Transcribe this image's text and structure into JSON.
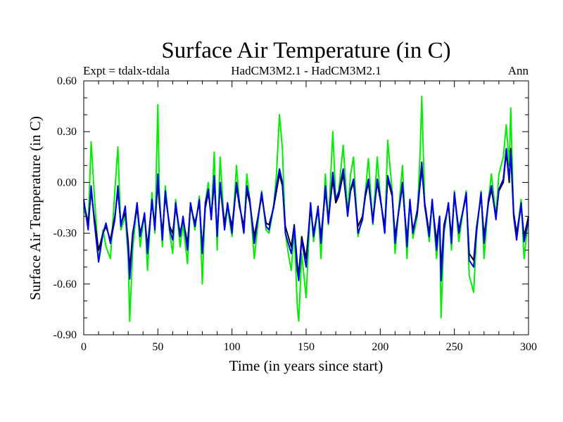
{
  "chart_data": {
    "type": "line",
    "title": "Surface Air Temperature (in C)",
    "subtitle_left": "Expt = tdalx-tdala",
    "subtitle_center": "HadCM3M2.1 - HadCM3M2.1",
    "subtitle_right": "Ann",
    "xlabel": "Time (in years since start)",
    "ylabel": "Surface Air Temperature (in C)",
    "xlim": [
      0,
      300
    ],
    "ylim": [
      -0.9,
      0.6
    ],
    "xticks": [
      0,
      50,
      100,
      150,
      200,
      250,
      300
    ],
    "xtick_labels": [
      "0",
      "50",
      "100",
      "150",
      "200",
      "250",
      "300"
    ],
    "yticks": [
      -0.9,
      -0.6,
      -0.3,
      0.0,
      0.3,
      0.6
    ],
    "ytick_labels": [
      "-0.90",
      "-0.60",
      "-0.30",
      "0.00",
      "0.30",
      "0.60"
    ],
    "grid": false,
    "series": [
      {
        "name": "green",
        "color": "#00ee00",
        "x": [
          0,
          3,
          5,
          7,
          10,
          13,
          15,
          18,
          21,
          23,
          25,
          28,
          30,
          31,
          33,
          36,
          38,
          41,
          43,
          46,
          48,
          50,
          51,
          53,
          55,
          58,
          60,
          62,
          65,
          67,
          70,
          72,
          75,
          78,
          80,
          82,
          84,
          86,
          88,
          90,
          92,
          95,
          97,
          100,
          103,
          105,
          108,
          110,
          112,
          115,
          118,
          120,
          123,
          125,
          128,
          130,
          132,
          134,
          136,
          138,
          140,
          142,
          144,
          145,
          147,
          150,
          153,
          155,
          158,
          160,
          163,
          165,
          168,
          170,
          172,
          175,
          178,
          180,
          182,
          185,
          188,
          190,
          192,
          195,
          198,
          200,
          203,
          205,
          208,
          210,
          212,
          215,
          218,
          220,
          222,
          225,
          227,
          228,
          230,
          233,
          235,
          238,
          240,
          241,
          243,
          246,
          248,
          250,
          253,
          255,
          258,
          260,
          263,
          265,
          268,
          270,
          273,
          275,
          278,
          280,
          283,
          285,
          287,
          288,
          290,
          292,
          295,
          297,
          300
        ],
        "values": [
          -0.15,
          -0.25,
          0.24,
          -0.05,
          -0.46,
          -0.28,
          -0.38,
          -0.45,
          -0.05,
          0.21,
          -0.28,
          -0.2,
          -0.45,
          -0.82,
          -0.4,
          -0.12,
          -0.38,
          -0.18,
          -0.52,
          -0.06,
          -0.3,
          0.46,
          -0.05,
          -0.38,
          -0.02,
          -0.3,
          -0.42,
          -0.1,
          -0.38,
          -0.25,
          -0.48,
          -0.12,
          -0.28,
          -0.08,
          -0.6,
          -0.12,
          0.0,
          -0.22,
          0.18,
          -0.4,
          0.15,
          -0.28,
          -0.15,
          -0.32,
          0.1,
          -0.12,
          -0.3,
          0.05,
          -0.1,
          -0.45,
          -0.2,
          -0.05,
          -0.28,
          -0.3,
          -0.15,
          0.05,
          0.4,
          0.2,
          -0.3,
          -0.42,
          -0.52,
          -0.28,
          -0.73,
          -0.82,
          -0.42,
          -0.68,
          -0.12,
          -0.35,
          -0.15,
          -0.45,
          0.05,
          -0.25,
          0.3,
          -0.1,
          -0.05,
          0.22,
          -0.18,
          0.05,
          0.15,
          -0.32,
          -0.2,
          -0.05,
          0.14,
          -0.25,
          0.15,
          -0.08,
          -0.3,
          0.25,
          -0.05,
          -0.42,
          -0.2,
          0.1,
          -0.45,
          -0.1,
          -0.33,
          -0.2,
          0.2,
          0.51,
          -0.12,
          -0.35,
          -0.1,
          -0.45,
          -0.2,
          -0.8,
          -0.3,
          -0.12,
          -0.4,
          -0.05,
          -0.35,
          -0.22,
          -0.05,
          -0.55,
          -0.65,
          -0.3,
          -0.05,
          -0.45,
          -0.1,
          0.05,
          -0.2,
          0.05,
          0.15,
          0.34,
          0.1,
          0.44,
          -0.2,
          -0.32,
          -0.1,
          -0.45,
          -0.2
        ]
      },
      {
        "name": "black",
        "color": "#000000",
        "x": [
          0,
          3,
          5,
          7,
          10,
          13,
          15,
          18,
          21,
          23,
          25,
          28,
          30,
          31,
          33,
          36,
          38,
          41,
          43,
          46,
          48,
          50,
          51,
          53,
          55,
          58,
          60,
          62,
          65,
          67,
          70,
          72,
          75,
          78,
          80,
          82,
          84,
          86,
          88,
          90,
          92,
          95,
          97,
          100,
          103,
          105,
          108,
          110,
          112,
          115,
          118,
          120,
          123,
          125,
          128,
          130,
          132,
          134,
          136,
          138,
          140,
          142,
          144,
          145,
          147,
          150,
          153,
          155,
          158,
          160,
          163,
          165,
          168,
          170,
          172,
          175,
          178,
          180,
          182,
          185,
          188,
          190,
          192,
          195,
          198,
          200,
          203,
          205,
          208,
          210,
          212,
          215,
          218,
          220,
          222,
          225,
          227,
          228,
          230,
          233,
          235,
          238,
          240,
          241,
          243,
          246,
          248,
          250,
          253,
          255,
          258,
          260,
          263,
          265,
          268,
          270,
          273,
          275,
          278,
          280,
          283,
          285,
          287,
          288,
          290,
          292,
          295,
          297,
          300
        ],
        "values": [
          -0.12,
          -0.24,
          -0.05,
          -0.2,
          -0.4,
          -0.3,
          -0.26,
          -0.34,
          -0.2,
          -0.05,
          -0.24,
          -0.18,
          -0.35,
          -0.52,
          -0.3,
          -0.15,
          -0.3,
          -0.2,
          -0.38,
          -0.12,
          -0.25,
          0.0,
          -0.12,
          -0.3,
          -0.08,
          -0.26,
          -0.3,
          -0.15,
          -0.3,
          -0.22,
          -0.36,
          -0.14,
          -0.24,
          -0.12,
          -0.4,
          -0.15,
          -0.06,
          -0.2,
          0.0,
          -0.3,
          -0.02,
          -0.24,
          -0.14,
          -0.26,
          -0.02,
          -0.14,
          -0.26,
          -0.05,
          -0.12,
          -0.32,
          -0.18,
          -0.08,
          -0.24,
          -0.25,
          -0.15,
          -0.05,
          0.05,
          -0.02,
          -0.26,
          -0.32,
          -0.38,
          -0.25,
          -0.48,
          -0.55,
          -0.32,
          -0.45,
          -0.15,
          -0.3,
          -0.16,
          -0.32,
          -0.05,
          -0.22,
          0.02,
          -0.12,
          -0.08,
          0.05,
          -0.18,
          -0.05,
          0.0,
          -0.26,
          -0.2,
          -0.08,
          0.0,
          -0.22,
          0.0,
          -0.1,
          -0.26,
          0.02,
          -0.08,
          -0.32,
          -0.2,
          -0.02,
          -0.34,
          -0.12,
          -0.28,
          -0.18,
          0.0,
          0.08,
          -0.12,
          -0.3,
          -0.12,
          -0.35,
          -0.2,
          -0.52,
          -0.25,
          -0.14,
          -0.32,
          -0.08,
          -0.28,
          -0.2,
          -0.08,
          -0.42,
          -0.46,
          -0.26,
          -0.08,
          -0.32,
          -0.12,
          -0.04,
          -0.2,
          -0.05,
          0.0,
          0.18,
          0.0,
          0.2,
          -0.18,
          -0.3,
          -0.14,
          -0.32,
          -0.2
        ]
      },
      {
        "name": "blue",
        "color": "#0000ee",
        "x": [
          0,
          3,
          5,
          7,
          10,
          13,
          15,
          18,
          21,
          23,
          25,
          28,
          30,
          31,
          33,
          36,
          38,
          41,
          43,
          46,
          48,
          50,
          51,
          53,
          55,
          58,
          60,
          62,
          65,
          67,
          70,
          72,
          75,
          78,
          80,
          82,
          84,
          86,
          88,
          90,
          92,
          95,
          97,
          100,
          103,
          105,
          108,
          110,
          112,
          115,
          118,
          120,
          123,
          125,
          128,
          130,
          132,
          134,
          136,
          138,
          140,
          142,
          144,
          145,
          147,
          150,
          153,
          155,
          158,
          160,
          163,
          165,
          168,
          170,
          172,
          175,
          178,
          180,
          182,
          185,
          188,
          190,
          192,
          195,
          198,
          200,
          203,
          205,
          208,
          210,
          212,
          215,
          218,
          220,
          222,
          225,
          227,
          228,
          230,
          233,
          235,
          238,
          240,
          241,
          243,
          246,
          248,
          250,
          253,
          255,
          258,
          260,
          263,
          265,
          268,
          270,
          273,
          275,
          278,
          280,
          283,
          285,
          287,
          288,
          290,
          292,
          295,
          297,
          300
        ],
        "values": [
          -0.1,
          -0.28,
          -0.02,
          -0.22,
          -0.47,
          -0.3,
          -0.24,
          -0.36,
          -0.22,
          -0.02,
          -0.26,
          -0.14,
          -0.4,
          -0.57,
          -0.32,
          -0.12,
          -0.32,
          -0.18,
          -0.42,
          -0.1,
          -0.28,
          0.05,
          -0.1,
          -0.34,
          -0.05,
          -0.28,
          -0.34,
          -0.12,
          -0.32,
          -0.2,
          -0.4,
          -0.12,
          -0.26,
          -0.1,
          -0.42,
          -0.12,
          -0.04,
          -0.22,
          0.04,
          -0.32,
          0.0,
          -0.28,
          -0.12,
          -0.3,
          0.0,
          -0.12,
          -0.3,
          -0.02,
          -0.1,
          -0.36,
          -0.18,
          -0.06,
          -0.26,
          -0.28,
          -0.14,
          -0.02,
          0.08,
          0.0,
          -0.3,
          -0.36,
          -0.42,
          -0.26,
          -0.52,
          -0.58,
          -0.34,
          -0.5,
          -0.12,
          -0.32,
          -0.14,
          -0.36,
          -0.02,
          -0.24,
          0.06,
          -0.1,
          -0.06,
          0.08,
          -0.2,
          -0.04,
          0.02,
          -0.3,
          -0.22,
          -0.06,
          0.02,
          -0.24,
          0.02,
          -0.08,
          -0.3,
          0.04,
          -0.06,
          -0.36,
          -0.2,
          0.0,
          -0.38,
          -0.1,
          -0.3,
          -0.16,
          0.02,
          0.12,
          -0.14,
          -0.32,
          -0.1,
          -0.4,
          -0.2,
          -0.58,
          -0.28,
          -0.12,
          -0.36,
          -0.06,
          -0.3,
          -0.2,
          -0.06,
          -0.46,
          -0.5,
          -0.28,
          -0.06,
          -0.36,
          -0.1,
          -0.02,
          -0.22,
          -0.04,
          0.02,
          0.2,
          0.02,
          0.18,
          -0.2,
          -0.34,
          -0.12,
          -0.35,
          -0.22
        ]
      }
    ]
  }
}
